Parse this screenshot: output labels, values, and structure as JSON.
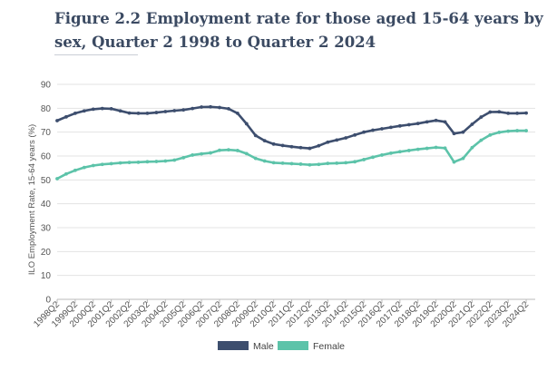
{
  "header": {
    "title": "Figure 2.2 Employment rate for those aged 15-64 years by sex, Quarter 2 1998 to Quarter 2 2024"
  },
  "chart_data": {
    "type": "line",
    "ylabel": "ILO Employment Rate, 15-64 years (%)",
    "xlabel": "",
    "ylim": [
      0,
      90
    ],
    "yticks": [
      0,
      10,
      20,
      30,
      40,
      50,
      60,
      70,
      80,
      90
    ],
    "grid": true,
    "legend_position": "bottom",
    "categories": [
      "1998Q2",
      "1999Q2",
      "2000Q2",
      "2001Q2",
      "2002Q2",
      "2003Q2",
      "2004Q2",
      "2005Q2",
      "2006Q2",
      "2007Q2",
      "2008Q2",
      "2009Q2",
      "2010Q2",
      "2011Q2",
      "2012Q2",
      "2013Q2",
      "2014Q2",
      "2015Q2",
      "2016Q2",
      "2017Q2",
      "2018Q2",
      "2019Q2",
      "2020Q2",
      "2021Q2",
      "2022Q2",
      "2023Q2",
      "2024Q2"
    ],
    "x": [
      1998,
      1998.5,
      1999,
      1999.5,
      2000,
      2000.5,
      2001,
      2001.5,
      2002,
      2002.5,
      2003,
      2003.5,
      2004,
      2004.5,
      2005,
      2005.5,
      2006,
      2006.5,
      2007,
      2007.5,
      2008,
      2008.5,
      2009,
      2009.5,
      2010,
      2010.5,
      2011,
      2011.5,
      2012,
      2012.5,
      2013,
      2013.5,
      2014,
      2014.5,
      2015,
      2015.5,
      2016,
      2016.5,
      2017,
      2017.5,
      2018,
      2018.5,
      2019,
      2019.5,
      2020,
      2020.5,
      2021,
      2021.5,
      2022,
      2022.5,
      2023,
      2023.5,
      2024
    ],
    "series": [
      {
        "name": "Male",
        "color": "#3d4e6e",
        "values": [
          74.8,
          76.4,
          77.9,
          78.9,
          79.6,
          79.9,
          79.8,
          78.9,
          78.0,
          77.9,
          77.9,
          78.2,
          78.6,
          79.0,
          79.3,
          79.9,
          80.5,
          80.6,
          80.3,
          79.8,
          77.9,
          73.5,
          68.6,
          66.4,
          65.0,
          64.4,
          63.9,
          63.5,
          63.2,
          64.3,
          65.8,
          66.7,
          67.6,
          68.8,
          70.0,
          70.8,
          71.4,
          72.0,
          72.6,
          73.1,
          73.6,
          74.3,
          74.9,
          74.3,
          69.4,
          70.0,
          73.3,
          76.3,
          78.4,
          78.5,
          77.9,
          77.9,
          78.0
        ]
      },
      {
        "name": "Female",
        "color": "#5cc3a9",
        "values": [
          50.5,
          52.5,
          54.0,
          55.2,
          56.0,
          56.5,
          56.8,
          57.1,
          57.3,
          57.4,
          57.6,
          57.7,
          57.9,
          58.3,
          59.3,
          60.4,
          60.9,
          61.3,
          62.4,
          62.6,
          62.3,
          61.0,
          59.0,
          57.9,
          57.2,
          57.0,
          56.8,
          56.6,
          56.3,
          56.5,
          56.9,
          57.0,
          57.2,
          57.6,
          58.5,
          59.5,
          60.4,
          61.2,
          61.8,
          62.3,
          62.8,
          63.2,
          63.6,
          63.3,
          57.5,
          59.0,
          63.5,
          66.6,
          68.8,
          69.9,
          70.4,
          70.6,
          70.6
        ]
      }
    ]
  }
}
